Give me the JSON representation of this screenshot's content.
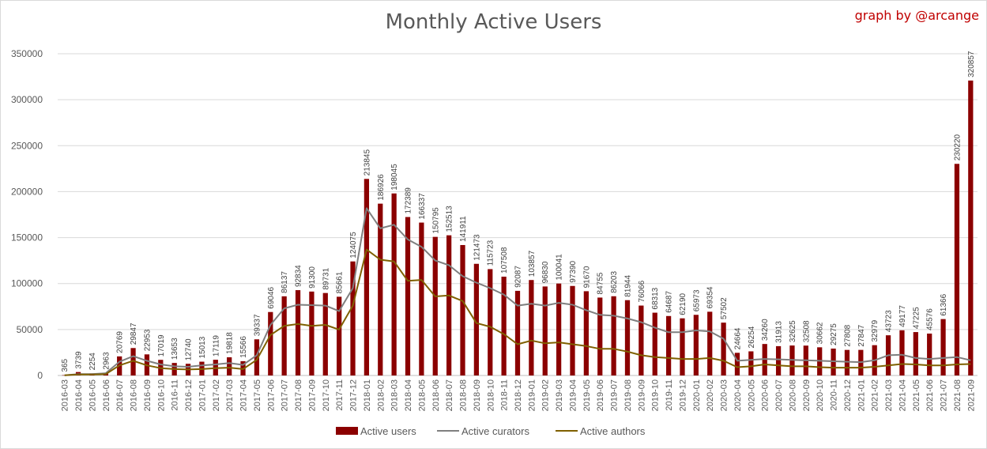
{
  "header": {
    "title": "Monthly Active Users",
    "credit": "graph by @arcange"
  },
  "colors": {
    "active_users": "#8b0000",
    "active_curators": "#7f7f7f",
    "active_authors": "#7f6000",
    "gridline": "#d9d9d9",
    "credit": "#c00000"
  },
  "chart_data": {
    "type": "bar",
    "title": "Monthly Active Users",
    "xlabel": "",
    "ylabel": "",
    "ylim": [
      0,
      350000
    ],
    "yticks": [
      0,
      50000,
      100000,
      150000,
      200000,
      250000,
      300000,
      350000
    ],
    "grid": true,
    "legend_position": "bottom",
    "categories": [
      "2016-03",
      "2016-04",
      "2016-05",
      "2016-06",
      "2016-07",
      "2016-08",
      "2016-09",
      "2016-10",
      "2016-11",
      "2016-12",
      "2017-01",
      "2017-02",
      "2017-03",
      "2017-04",
      "2017-05",
      "2017-06",
      "2017-07",
      "2017-08",
      "2017-09",
      "2017-10",
      "2017-11",
      "2017-12",
      "2018-01",
      "2018-02",
      "2018-03",
      "2018-04",
      "2018-05",
      "2018-06",
      "2018-07",
      "2018-08",
      "2018-09",
      "2018-10",
      "2018-11",
      "2018-12",
      "2019-01",
      "2019-02",
      "2019-03",
      "2019-04",
      "2019-05",
      "2019-06",
      "2019-07",
      "2019-08",
      "2019-09",
      "2019-10",
      "2019-11",
      "2019-12",
      "2020-01",
      "2020-02",
      "2020-03",
      "2020-04",
      "2020-05",
      "2020-06",
      "2020-07",
      "2020-08",
      "2020-09",
      "2020-10",
      "2020-11",
      "2020-12",
      "2021-01",
      "2021-02",
      "2021-03",
      "2021-04",
      "2021-05",
      "2021-06",
      "2021-07",
      "2021-08",
      "2021-09"
    ],
    "series": [
      {
        "name": "Active users",
        "kind": "bar",
        "values": [
          365,
          3739,
          2254,
          2963,
          20769,
          29847,
          22953,
          17019,
          13653,
          12740,
          15013,
          17119,
          19818,
          15566,
          39337,
          69046,
          86137,
          92834,
          91300,
          89731,
          85661,
          124075,
          213845,
          186926,
          198045,
          172389,
          166337,
          150795,
          152513,
          141911,
          121473,
          115723,
          107508,
          92087,
          103857,
          96830,
          100041,
          97390,
          91670,
          84755,
          86203,
          81944,
          76066,
          68313,
          64687,
          62190,
          65973,
          69354,
          57502,
          24664,
          26254,
          34260,
          31913,
          32625,
          32508,
          30662,
          29275,
          27808,
          27847,
          32979,
          43723,
          49177,
          47225,
          45576,
          61366,
          230220,
          320857
        ]
      },
      {
        "name": "Active curators",
        "kind": "line",
        "values": [
          200,
          1500,
          1500,
          2500,
          15000,
          21000,
          16000,
          12000,
          10000,
          9500,
          11000,
          12000,
          13500,
          11500,
          22000,
          55000,
          73000,
          77000,
          76500,
          76000,
          70000,
          95000,
          182000,
          160000,
          164000,
          148000,
          140000,
          125000,
          120000,
          108000,
          101000,
          95000,
          88000,
          76000,
          78000,
          76000,
          79000,
          77000,
          71000,
          66000,
          65000,
          62000,
          58000,
          52000,
          47000,
          47000,
          49000,
          48000,
          40000,
          16000,
          17000,
          18000,
          17500,
          17000,
          16500,
          16000,
          15500,
          15000,
          14500,
          16500,
          22000,
          22500,
          19000,
          18000,
          19000,
          20000,
          16500
        ]
      },
      {
        "name": "Active authors",
        "kind": "line",
        "values": [
          150,
          1000,
          1000,
          1500,
          11000,
          16000,
          11000,
          8000,
          7000,
          6500,
          7000,
          8000,
          8500,
          7000,
          17000,
          44000,
          54000,
          56000,
          54000,
          55000,
          50000,
          76000,
          137000,
          126000,
          124000,
          103000,
          104000,
          86000,
          87000,
          81000,
          57000,
          53000,
          45000,
          34000,
          38000,
          35000,
          36000,
          34000,
          32000,
          29000,
          29000,
          26000,
          22000,
          20000,
          19000,
          18000,
          18000,
          19000,
          16000,
          9000,
          10000,
          12000,
          11000,
          10000,
          10000,
          9000,
          8500,
          8500,
          8500,
          9500,
          11000,
          12500,
          12000,
          11000,
          11000,
          12000,
          12500
        ]
      }
    ]
  }
}
